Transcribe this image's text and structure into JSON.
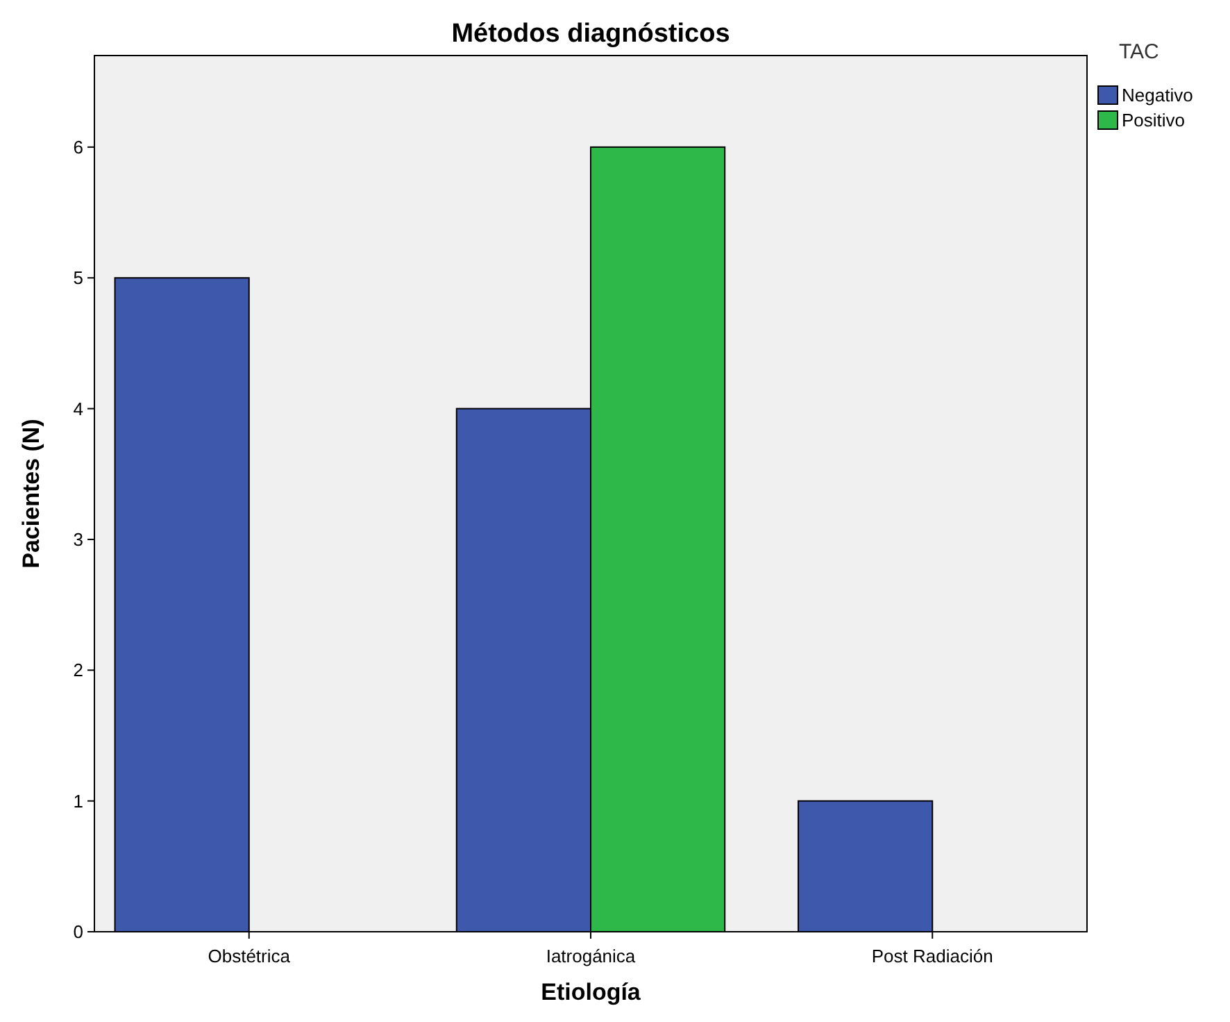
{
  "chart_data": {
    "type": "bar",
    "title": "Métodos diagnósticos",
    "xlabel": "Etiología",
    "ylabel": "Pacientes (N)",
    "legend_title": "TAC",
    "categories": [
      "Obstétrica",
      "Iatrogánica",
      "Post Radiación"
    ],
    "series": [
      {
        "name": "Negativo",
        "color": "#3e58ac",
        "values": [
          5,
          4,
          1
        ]
      },
      {
        "name": "Positivo",
        "color": "#2fb84a",
        "values": [
          null,
          6,
          null
        ]
      }
    ],
    "ylim": [
      0,
      6.7
    ],
    "yticks": [
      0,
      1,
      2,
      3,
      4,
      5,
      6
    ],
    "grid": false,
    "legend": "top right"
  }
}
